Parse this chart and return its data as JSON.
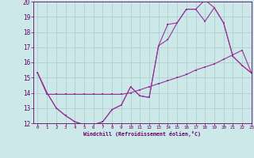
{
  "bg_color": "#cce8e8",
  "grid_color": "#aacccc",
  "line_color": "#993399",
  "axis_text_color": "#660066",
  "xlabel": "Windchill (Refroidissement éolien,°C)",
  "xlim": [
    -0.5,
    23
  ],
  "ylim": [
    12,
    20
  ],
  "xticks": [
    0,
    1,
    2,
    3,
    4,
    5,
    6,
    7,
    8,
    9,
    10,
    11,
    12,
    13,
    14,
    15,
    16,
    17,
    18,
    19,
    20,
    21,
    22,
    23
  ],
  "yticks": [
    12,
    13,
    14,
    15,
    16,
    17,
    18,
    19,
    20
  ],
  "curve1_x": [
    0,
    1,
    2,
    3,
    4,
    5,
    6,
    7,
    8,
    9,
    10,
    11,
    12,
    13,
    14,
    15,
    16,
    17,
    18,
    19,
    20,
    21,
    22,
    23
  ],
  "curve1_y": [
    15.3,
    13.9,
    13.9,
    13.9,
    13.9,
    13.9,
    13.9,
    13.9,
    13.9,
    13.9,
    14.0,
    14.2,
    14.4,
    14.6,
    14.8,
    15.0,
    15.2,
    15.5,
    15.7,
    15.9,
    16.2,
    16.5,
    16.8,
    15.3
  ],
  "curve2_x": [
    0,
    1,
    2,
    3,
    4,
    5,
    6,
    7,
    8,
    9,
    10,
    11,
    12,
    13,
    14,
    15,
    16,
    17,
    18,
    19,
    20,
    21,
    22,
    23
  ],
  "curve2_y": [
    15.3,
    14.0,
    13.0,
    12.5,
    12.1,
    11.9,
    11.9,
    12.1,
    12.9,
    13.2,
    14.4,
    13.8,
    13.7,
    17.1,
    18.5,
    18.6,
    19.5,
    19.5,
    20.1,
    19.6,
    18.6,
    16.4,
    15.8,
    15.3
  ],
  "curve3_x": [
    0,
    1,
    2,
    3,
    4,
    5,
    6,
    7,
    8,
    9,
    10,
    11,
    12,
    13,
    14,
    15,
    16,
    17,
    18,
    19,
    20,
    21,
    22,
    23
  ],
  "curve3_y": [
    15.3,
    14.0,
    13.0,
    12.5,
    12.1,
    11.9,
    11.9,
    12.1,
    12.9,
    13.2,
    14.4,
    13.8,
    13.7,
    17.1,
    17.5,
    18.6,
    19.5,
    19.5,
    18.7,
    19.6,
    18.6,
    16.4,
    15.8,
    15.3
  ]
}
